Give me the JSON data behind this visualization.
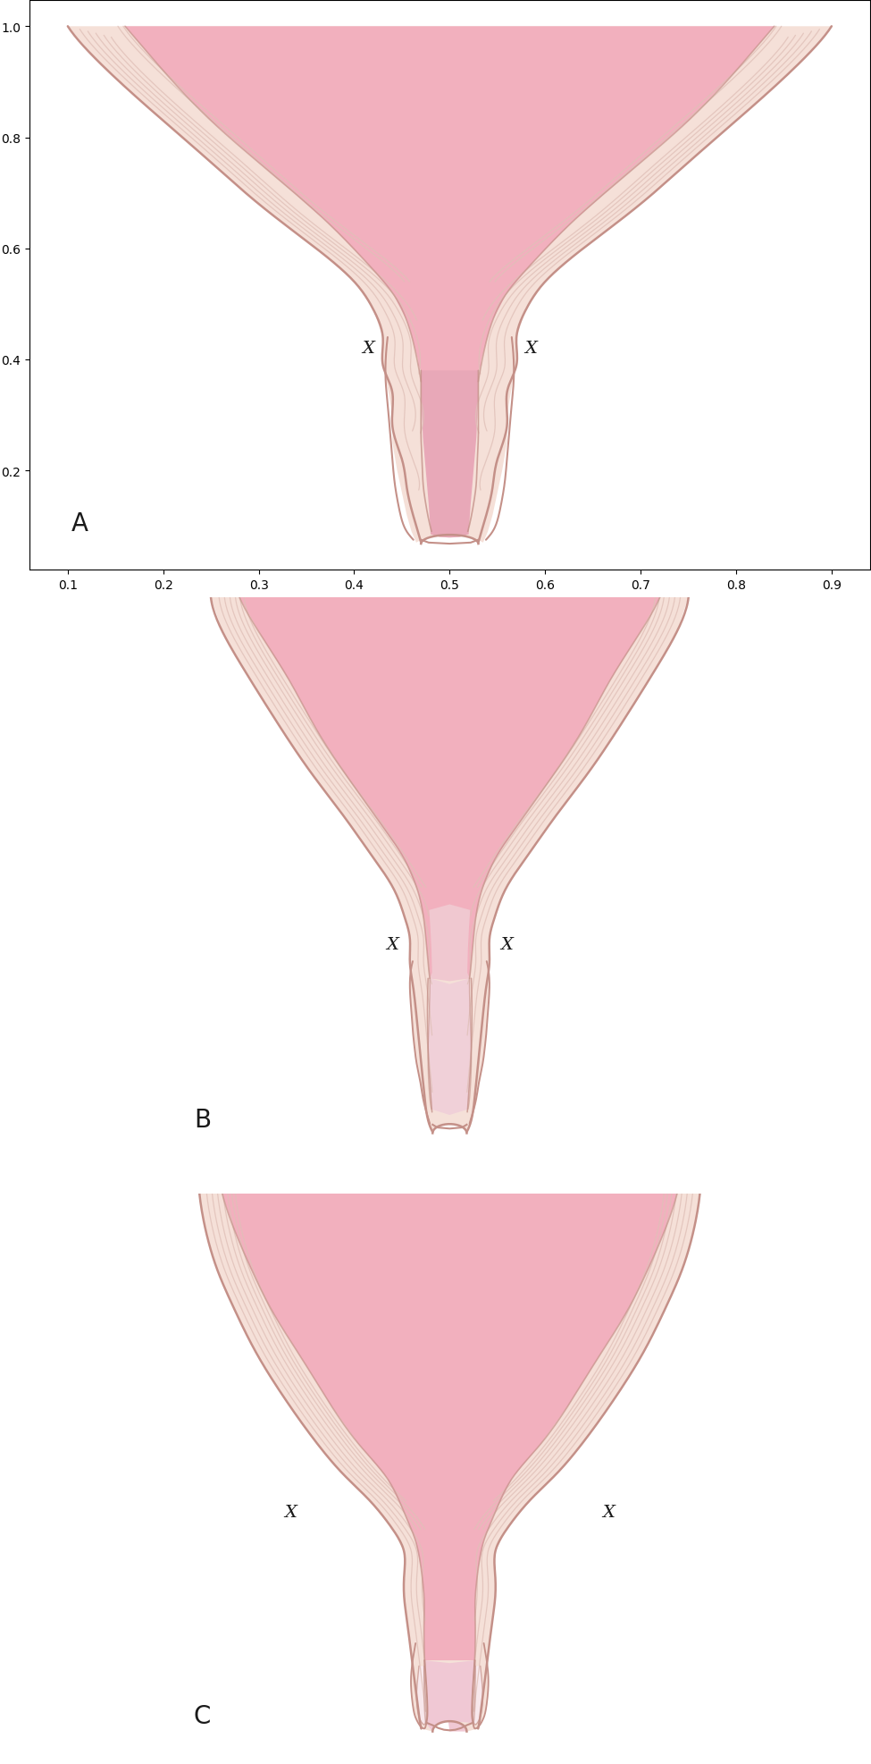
{
  "background_color": "#ffffff",
  "label_color": "#1a1a1a",
  "label_fontsize": 22,
  "x_label_fontsize": 18,
  "panels": [
    "A",
    "B",
    "C"
  ],
  "pink_inner": "#f0a0b0",
  "pink_light": "#f5c8d0",
  "pink_medium": "#e8909a",
  "skin_light": "#f7e8e0",
  "skin_medium": "#f0d0c0",
  "skin_outline": "#d4a090",
  "muscle_line": "#e0b8b0",
  "cervix_pink": "#e8b0b8",
  "dark_pink": "#d47080",
  "very_light_pink": "#fce8ec",
  "x_color": "#1a1a1a"
}
